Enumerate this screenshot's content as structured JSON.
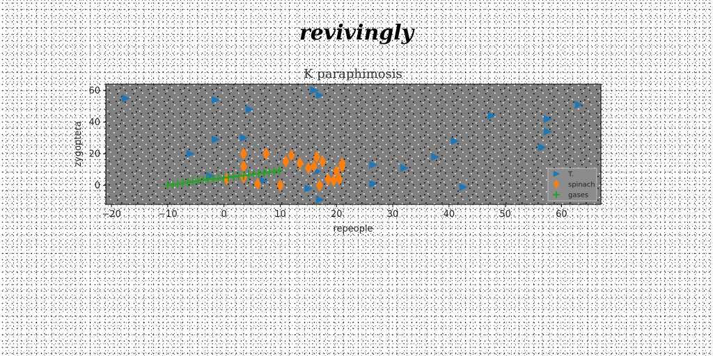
{
  "suptitle": "revivingly",
  "chart_data": {
    "type": "scatter",
    "title": "K paraphimosis",
    "xlabel": "repeople",
    "ylabel": "zygoptera",
    "xlim": [
      -21,
      67
    ],
    "ylim": [
      -12,
      64
    ],
    "xticks": [
      -20,
      -10,
      0,
      10,
      20,
      30,
      40,
      50,
      60
    ],
    "yticks": [
      0,
      20,
      40,
      60
    ],
    "grid": false,
    "legend_position": "lower-right",
    "background": "#808080",
    "series": [
      {
        "name": "T.",
        "marker": "triangle-right",
        "color": "#1f77b4",
        "x": [
          -17.5,
          -1.5,
          4.5,
          -6,
          -1.5,
          3.5,
          -2.5,
          7,
          16,
          17,
          16.5,
          17,
          15,
          26.5,
          32,
          26.5,
          37.5,
          41,
          42.5,
          47.5,
          57.5,
          57.5,
          56.5,
          63
        ],
        "y": [
          55,
          54,
          48,
          20,
          29,
          30,
          6,
          3,
          60,
          57,
          9,
          -9,
          -2,
          13,
          11,
          1,
          18,
          28,
          -1,
          44,
          42,
          34,
          24,
          51
        ]
      },
      {
        "name": "spinach",
        "marker": "thin-diamond",
        "color": "#ff7f0e",
        "x": [
          3.5,
          3.5,
          7.5,
          6,
          10,
          3.5,
          0.5,
          11,
          12,
          13.5,
          15,
          16.5,
          17.5,
          16,
          17,
          18.5,
          19.5,
          20,
          21,
          21,
          20.5
        ],
        "y": [
          20,
          12,
          20,
          1,
          0,
          5,
          4,
          15,
          19,
          14,
          11,
          18,
          15,
          12,
          0,
          4,
          3,
          9,
          12,
          14,
          4
        ]
      },
      {
        "name": "gases",
        "marker": "plus",
        "color": "#2ca02c",
        "x": [
          -10,
          -9.1,
          -8.2,
          -7.3,
          -6.4,
          -5.5,
          -4.6,
          -3.7,
          -2.8,
          -1.9,
          -1.0,
          -0.1,
          0.8,
          1.7,
          2.6,
          3.5,
          4.4,
          5.3,
          6.2,
          7.1,
          8.0,
          8.9,
          9.8
        ],
        "y": [
          0.0,
          0.5,
          1.0,
          1.5,
          2.0,
          2.5,
          3.0,
          3.3,
          3.7,
          4.0,
          4.4,
          4.8,
          5.1,
          5.5,
          5.9,
          6.3,
          6.7,
          7.1,
          7.5,
          7.9,
          8.4,
          8.9,
          9.5
        ]
      }
    ]
  }
}
